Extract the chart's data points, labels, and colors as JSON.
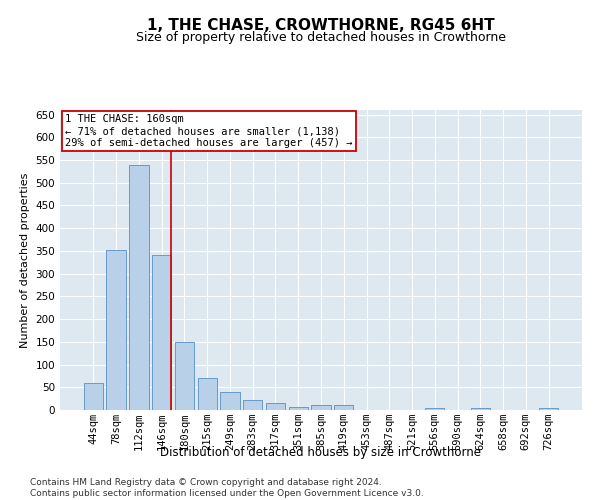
{
  "title": "1, THE CHASE, CROWTHORNE, RG45 6HT",
  "subtitle": "Size of property relative to detached houses in Crowthorne",
  "xlabel": "Distribution of detached houses by size in Crowthorne",
  "ylabel": "Number of detached properties",
  "bar_labels": [
    "44sqm",
    "78sqm",
    "112sqm",
    "146sqm",
    "180sqm",
    "215sqm",
    "249sqm",
    "283sqm",
    "317sqm",
    "351sqm",
    "385sqm",
    "419sqm",
    "453sqm",
    "487sqm",
    "521sqm",
    "556sqm",
    "590sqm",
    "624sqm",
    "658sqm",
    "692sqm",
    "726sqm"
  ],
  "bar_values": [
    60,
    352,
    540,
    340,
    150,
    70,
    40,
    22,
    16,
    7,
    10,
    10,
    0,
    0,
    0,
    5,
    0,
    5,
    0,
    0,
    5
  ],
  "bar_color": "#b8d0e8",
  "bar_edgecolor": "#6699cc",
  "plot_bg": "#dde8f0",
  "grid_color": "#ffffff",
  "vline_color": "#cc0000",
  "vline_x": 3.43,
  "ylim": [
    0,
    660
  ],
  "yticks": [
    0,
    50,
    100,
    150,
    200,
    250,
    300,
    350,
    400,
    450,
    500,
    550,
    600,
    650
  ],
  "annotation_text": "1 THE CHASE: 160sqm\n← 71% of detached houses are smaller (1,138)\n29% of semi-detached houses are larger (457) →",
  "annotation_box_facecolor": "#ffffff",
  "annotation_border_color": "#cc0000",
  "footnote": "Contains HM Land Registry data © Crown copyright and database right 2024.\nContains public sector information licensed under the Open Government Licence v3.0.",
  "title_fontsize": 11,
  "subtitle_fontsize": 9,
  "axis_label_fontsize": 8,
  "tick_fontsize": 7.5,
  "annotation_fontsize": 7.5,
  "footnote_fontsize": 6.5
}
